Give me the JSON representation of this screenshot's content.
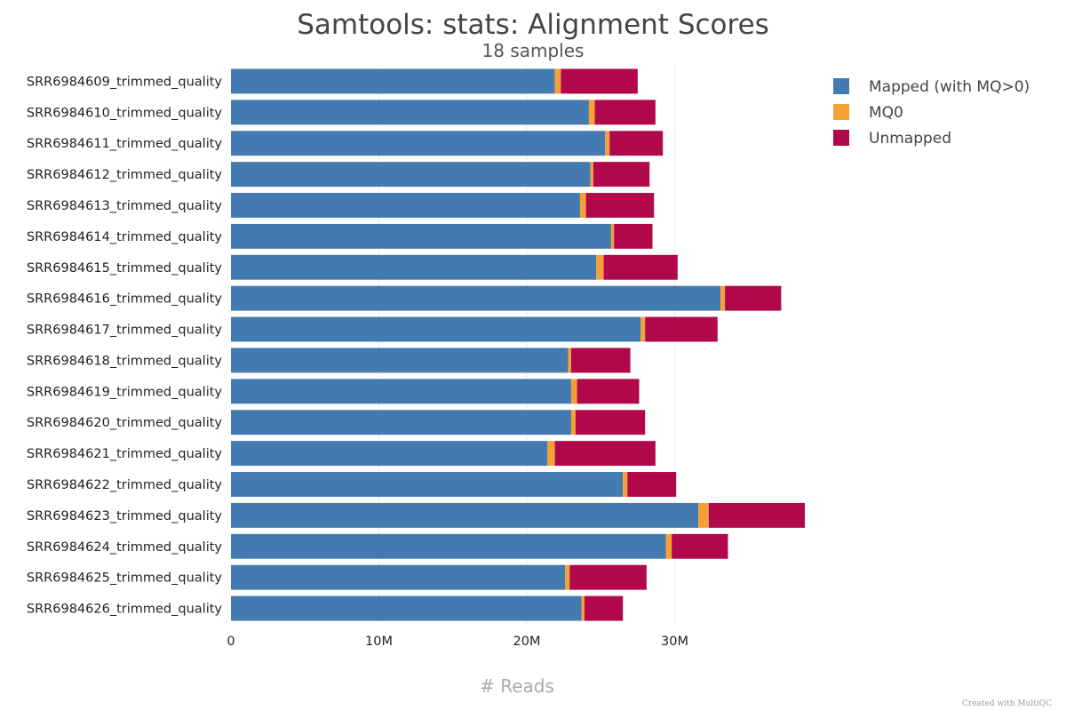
{
  "chart_data": {
    "type": "bar",
    "orientation": "horizontal",
    "stacked": true,
    "title": "Samtools: stats: Alignment Scores",
    "subtitle": "18 samples",
    "xlabel": "# Reads",
    "ylabel": "",
    "xlim": [
      0,
      40000000
    ],
    "xticks": [
      {
        "value": 0,
        "label": "0"
      },
      {
        "value": 10000000,
        "label": "10M"
      },
      {
        "value": 20000000,
        "label": "20M"
      },
      {
        "value": 30000000,
        "label": "30M"
      }
    ],
    "grid": true,
    "legend_position": "top-right",
    "categories": [
      "SRR6984609_trimmed_quality",
      "SRR6984610_trimmed_quality",
      "SRR6984611_trimmed_quality",
      "SRR6984612_trimmed_quality",
      "SRR6984613_trimmed_quality",
      "SRR6984614_trimmed_quality",
      "SRR6984615_trimmed_quality",
      "SRR6984616_trimmed_quality",
      "SRR6984617_trimmed_quality",
      "SRR6984618_trimmed_quality",
      "SRR6984619_trimmed_quality",
      "SRR6984620_trimmed_quality",
      "SRR6984621_trimmed_quality",
      "SRR6984622_trimmed_quality",
      "SRR6984623_trimmed_quality",
      "SRR6984624_trimmed_quality",
      "SRR6984625_trimmed_quality",
      "SRR6984626_trimmed_quality"
    ],
    "series": [
      {
        "name": "Mapped (with MQ>0)",
        "color": "#437bb1",
        "values": [
          21900000,
          24200000,
          25300000,
          24300000,
          23600000,
          25700000,
          24700000,
          33100000,
          27700000,
          22800000,
          23000000,
          23000000,
          21400000,
          26500000,
          31600000,
          29400000,
          22600000,
          23700000
        ]
      },
      {
        "name": "MQ0",
        "color": "#f7a035",
        "values": [
          400000,
          400000,
          300000,
          200000,
          400000,
          200000,
          500000,
          300000,
          300000,
          200000,
          400000,
          300000,
          500000,
          300000,
          700000,
          400000,
          300000,
          200000
        ]
      },
      {
        "name": "Unmapped",
        "color": "#b1084c",
        "values": [
          5200000,
          4100000,
          3600000,
          3800000,
          4600000,
          2600000,
          5000000,
          3800000,
          4900000,
          4000000,
          4200000,
          4700000,
          6800000,
          3300000,
          6500000,
          3800000,
          5200000,
          2600000
        ]
      }
    ]
  },
  "credit": "Created with MultiQC"
}
